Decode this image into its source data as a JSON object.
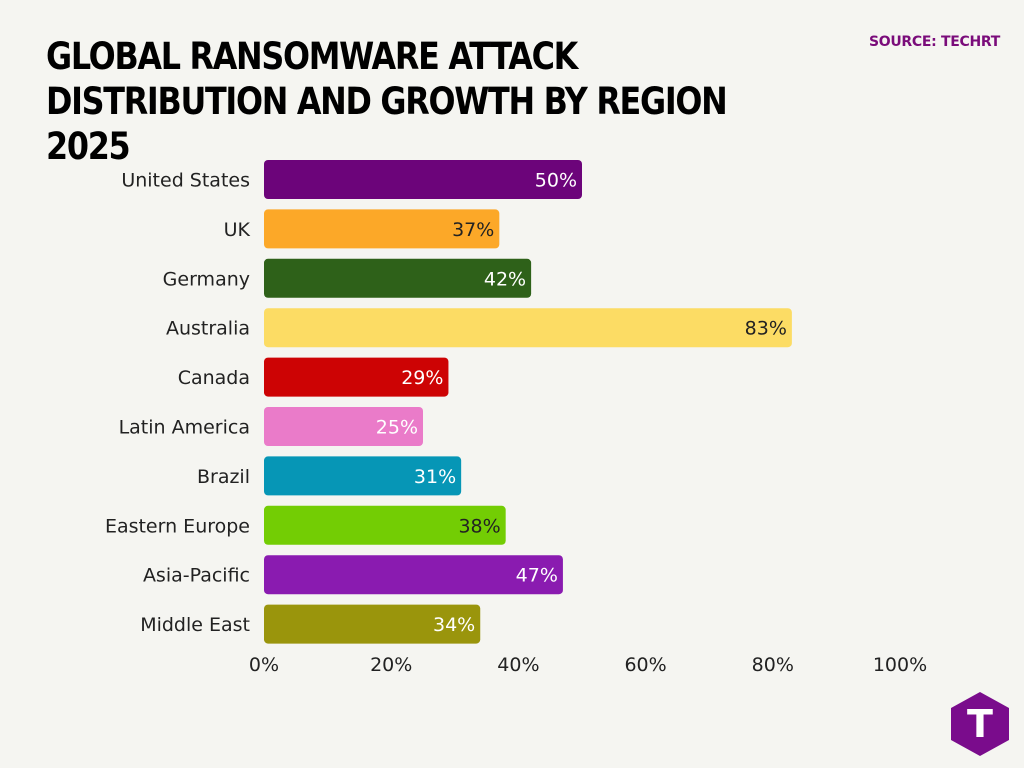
{
  "header": {
    "title": "GLOBAL RANSOMWARE ATTACK DISTRIBUTION AND GROWTH BY REGION 2025",
    "source": "SOURCE: TECHRT"
  },
  "logo": {
    "icon": "techrt-logo-icon",
    "letter": "T",
    "color": "#7a0c8c"
  },
  "chart_data": {
    "type": "bar",
    "orientation": "horizontal",
    "categories": [
      "United States",
      "UK",
      "Germany",
      "Australia",
      "Canada",
      "Latin America",
      "Brazil",
      "Eastern Europe",
      "Asia-Pacific",
      "Middle East"
    ],
    "values": [
      50,
      37,
      42,
      83,
      29,
      25,
      31,
      38,
      47,
      34
    ],
    "data_labels": [
      "50%",
      "37%",
      "42%",
      "83%",
      "29%",
      "25%",
      "31%",
      "38%",
      "47%",
      "34%"
    ],
    "colors": [
      "#6c047a",
      "#fca828",
      "#2e6119",
      "#fcdc64",
      "#cd0304",
      "#ea7bc9",
      "#0696b6",
      "#73cd04",
      "#8a1bb0",
      "#9a950c"
    ],
    "label_colors": [
      "#ffffff",
      "#222222",
      "#ffffff",
      "#222222",
      "#ffffff",
      "#ffffff",
      "#ffffff",
      "#222222",
      "#ffffff",
      "#ffffff"
    ],
    "xlim": [
      0,
      100
    ],
    "xticks": [
      0,
      20,
      40,
      60,
      80,
      100
    ],
    "xtick_labels": [
      "0%",
      "20%",
      "40%",
      "60%",
      "80%",
      "100%"
    ],
    "grid": false,
    "legend": "none",
    "title": "GLOBAL RANSOMWARE ATTACK DISTRIBUTION AND GROWTH BY REGION 2025"
  }
}
